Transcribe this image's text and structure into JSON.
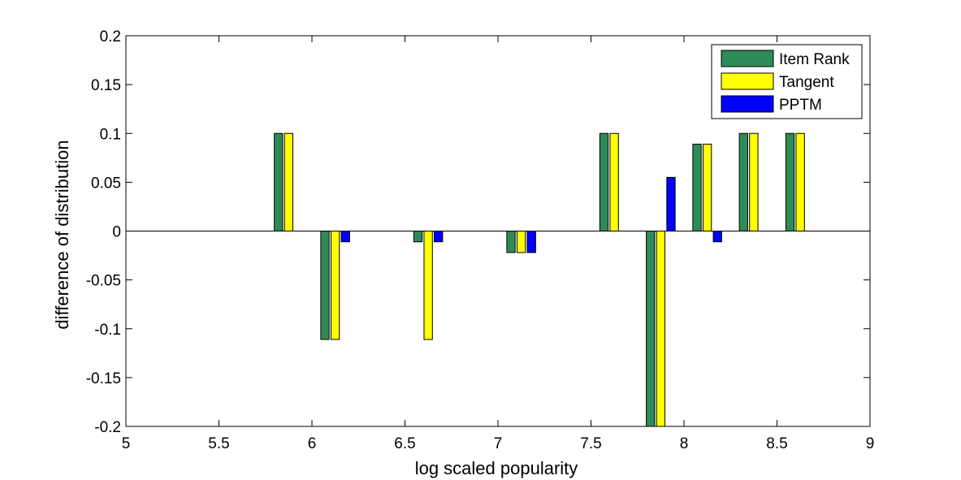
{
  "chart_data": {
    "type": "bar",
    "xlabel": "log scaled popularity",
    "ylabel": "difference of distribution",
    "xlim": [
      5,
      9
    ],
    "ylim": [
      -0.2,
      0.2
    ],
    "x_ticks": [
      "5",
      "5.5",
      "6",
      "6.5",
      "7",
      "7.5",
      "8",
      "8.5",
      "9"
    ],
    "y_ticks": [
      "0.2",
      "0.15",
      "0.1",
      "0.05",
      "0",
      "-0.05",
      "-0.1",
      "-0.15",
      "-0.2"
    ],
    "grid": false,
    "legend_position": "top-right",
    "bar_offsets": [
      -0.055,
      0,
      0.055
    ],
    "bar_width": 0.045,
    "x": [
      5.875,
      6.125,
      6.625,
      7.125,
      7.625,
      7.875,
      8.125,
      8.375,
      8.625
    ],
    "series": [
      {
        "name": "Item Rank",
        "color": "#2e8b57",
        "values": [
          0.1,
          -0.111,
          -0.011,
          -0.022,
          0.1,
          -0.2,
          0.089,
          0.1,
          0.1
        ]
      },
      {
        "name": "Tangent",
        "color": "#ffff00",
        "values": [
          0.1,
          -0.111,
          -0.111,
          -0.022,
          0.1,
          -0.2,
          0.089,
          0.1,
          0.1
        ]
      },
      {
        "name": "PPTM",
        "color": "#0000ff",
        "values": [
          0,
          -0.011,
          -0.011,
          -0.022,
          0,
          0.055,
          -0.011,
          0,
          0
        ]
      }
    ]
  }
}
